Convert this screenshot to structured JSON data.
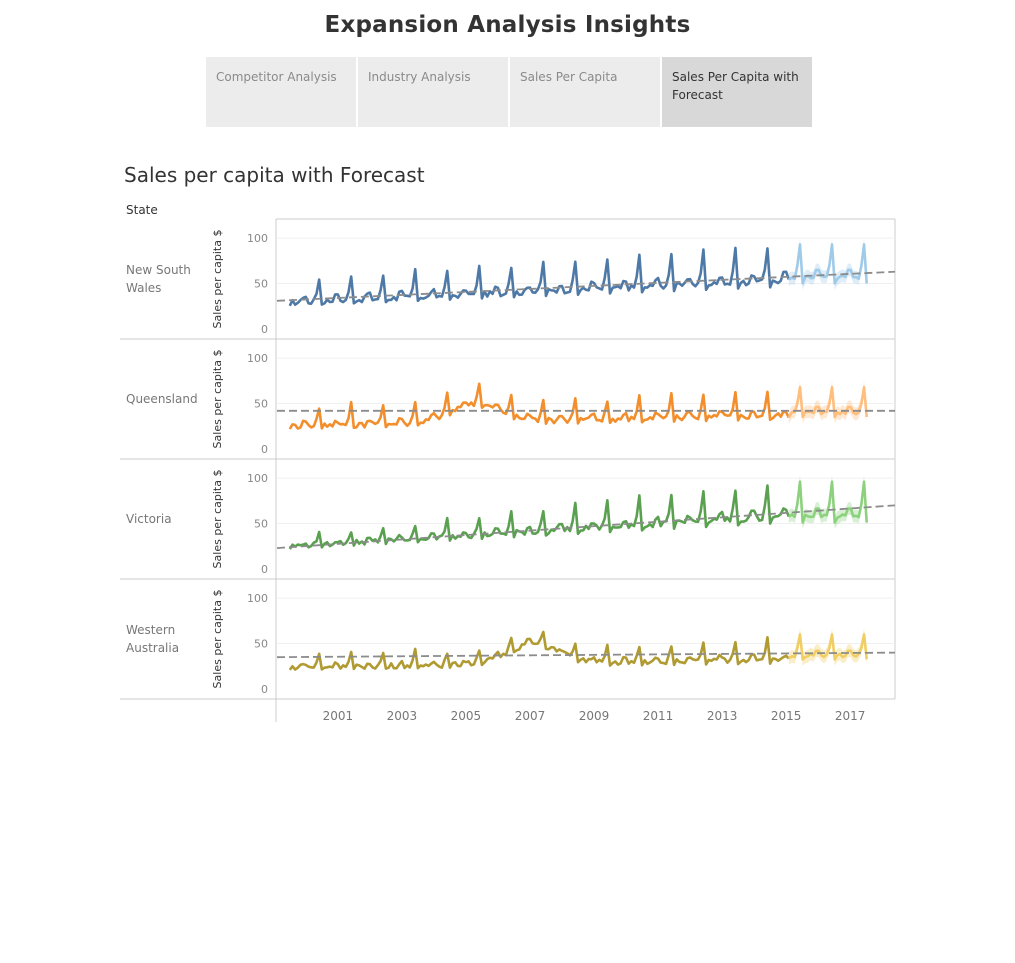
{
  "page": {
    "title": "Expansion Analysis Insights"
  },
  "tabs": [
    {
      "label": "Competitor Analysis",
      "active": false
    },
    {
      "label": "Industry Analysis",
      "active": false
    },
    {
      "label": "Sales Per Capita",
      "active": false
    },
    {
      "label": "Sales Per Capita with Forecast",
      "active": true
    }
  ],
  "chart_data": {
    "type": "line",
    "title": "Sales per capita with Forecast",
    "row_header": "State",
    "ylabel": "Sales per capita $",
    "yticks": [
      0,
      50,
      100
    ],
    "ylim": [
      0,
      110
    ],
    "xlim": [
      1999.6,
      2018.9
    ],
    "xticks": [
      "2001",
      "2003",
      "2005",
      "2007",
      "2009",
      "2011",
      "2013",
      "2015",
      "2017"
    ],
    "actual_end": 2015.6,
    "forecast_end": 2018.0,
    "trend_color": "#8c8c8c",
    "panels": [
      {
        "state": "New South Wales",
        "color": "#4e79a7",
        "forecast_color": "#a0cbe8",
        "base_start": 29,
        "base_end": 53,
        "peak_start": 52,
        "peak_end": 92,
        "forecast_base": 57,
        "forecast_peak": 93,
        "trend": [
          31,
          63
        ]
      },
      {
        "state": "Queensland",
        "color": "#f28e2b",
        "forecast_color": "#ffbe7d",
        "base_start": 25,
        "base_end": 37,
        "peak_start": 46,
        "peak_end": 61,
        "forecast_base": 40,
        "forecast_peak": 68,
        "trend": [
          42,
          42
        ],
        "hump_year": 2005.8,
        "hump_height": 20
      },
      {
        "state": "Victoria",
        "color": "#59a14f",
        "forecast_color": "#8cd17d",
        "base_start": 25,
        "base_end": 58,
        "peak_start": 34,
        "peak_end": 96,
        "forecast_base": 58,
        "forecast_peak": 96,
        "trend": [
          23,
          70
        ]
      },
      {
        "state": "Western Australia",
        "color": "#b09a32",
        "forecast_color": "#f1ce63",
        "base_start": 24,
        "base_end": 32,
        "peak_start": 37,
        "peak_end": 55,
        "forecast_base": 37,
        "forecast_peak": 60,
        "trend": [
          35,
          40
        ],
        "hump_year": 2007.6,
        "hump_height": 22
      }
    ]
  }
}
